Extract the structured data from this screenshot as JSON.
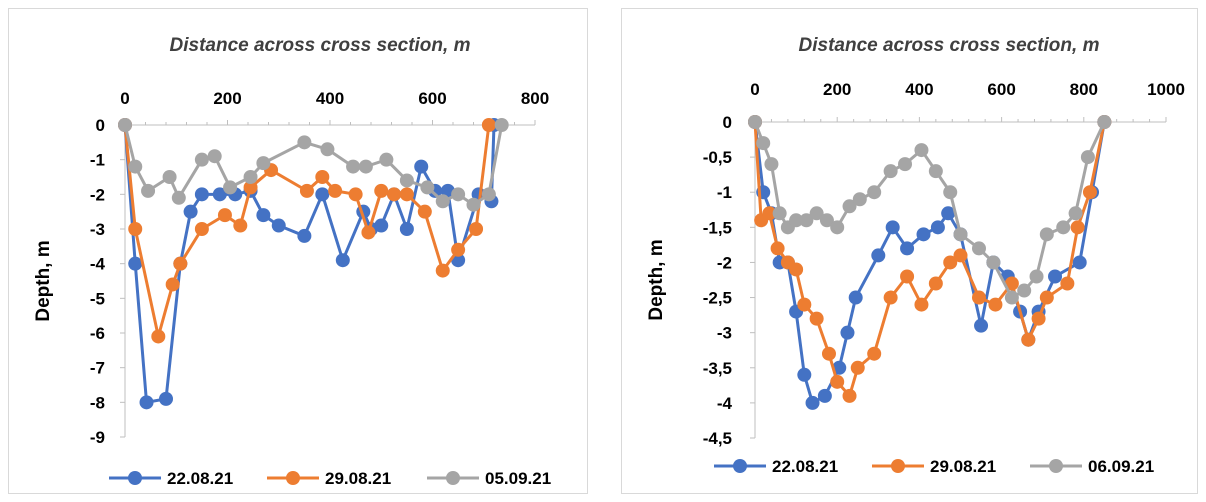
{
  "chart_data": [
    {
      "type": "line",
      "title": "Distance across cross section, m",
      "ylabel": "Depth, m",
      "xlabel": "",
      "xlim": [
        0,
        800
      ],
      "ylim": [
        -9,
        0
      ],
      "x_ticks": [
        "0",
        "200",
        "400",
        "600",
        "800"
      ],
      "y_ticks": [
        "0",
        "-1",
        "-2",
        "-3",
        "-4",
        "-5",
        "-6",
        "-7",
        "-8",
        "-9"
      ],
      "x_axis_position": "top",
      "legend_position": "bottom",
      "series": [
        {
          "name": "22.08.21",
          "color": "#4472c4",
          "points": [
            [
              0,
              0
            ],
            [
              20,
              -4
            ],
            [
              42,
              -8
            ],
            [
              80,
              -7.9
            ],
            [
              108,
              -4
            ],
            [
              128,
              -2.5
            ],
            [
              150,
              -2
            ],
            [
              185,
              -2
            ],
            [
              215,
              -2
            ],
            [
              245,
              -1.9
            ],
            [
              270,
              -2.6
            ],
            [
              300,
              -2.9
            ],
            [
              350,
              -3.2
            ],
            [
              385,
              -2
            ],
            [
              425,
              -3.9
            ],
            [
              465,
              -2.5
            ],
            [
              480,
              -3
            ],
            [
              500,
              -2.9
            ],
            [
              525,
              -2
            ],
            [
              550,
              -3
            ],
            [
              578,
              -1.2
            ],
            [
              605,
              -1.9
            ],
            [
              630,
              -1.9
            ],
            [
              650,
              -3.9
            ],
            [
              690,
              -2
            ],
            [
              715,
              -2.2
            ],
            [
              720,
              0
            ]
          ]
        },
        {
          "name": "29.08.21",
          "color": "#ed7d31",
          "points": [
            [
              0,
              0
            ],
            [
              20,
              -3
            ],
            [
              65,
              -6.1
            ],
            [
              93,
              -4.6
            ],
            [
              108,
              -4
            ],
            [
              150,
              -3
            ],
            [
              195,
              -2.6
            ],
            [
              225,
              -2.9
            ],
            [
              245,
              -1.8
            ],
            [
              285,
              -1.3
            ],
            [
              355,
              -1.9
            ],
            [
              385,
              -1.5
            ],
            [
              410,
              -1.9
            ],
            [
              450,
              -2
            ],
            [
              475,
              -3.1
            ],
            [
              500,
              -1.9
            ],
            [
              525,
              -2
            ],
            [
              550,
              -2
            ],
            [
              585,
              -2.5
            ],
            [
              620,
              -4.2
            ],
            [
              650,
              -3.6
            ],
            [
              685,
              -3
            ],
            [
              710,
              0
            ]
          ]
        },
        {
          "name": "05.09.21",
          "color": "#a5a5a5",
          "points": [
            [
              0,
              0
            ],
            [
              20,
              -1.2
            ],
            [
              45,
              -1.9
            ],
            [
              87,
              -1.5
            ],
            [
              105,
              -2.1
            ],
            [
              150,
              -1
            ],
            [
              175,
              -0.9
            ],
            [
              205,
              -1.8
            ],
            [
              245,
              -1.5
            ],
            [
              270,
              -1.1
            ],
            [
              350,
              -0.5
            ],
            [
              395,
              -0.7
            ],
            [
              445,
              -1.2
            ],
            [
              470,
              -1.2
            ],
            [
              510,
              -1
            ],
            [
              550,
              -1.6
            ],
            [
              590,
              -1.8
            ],
            [
              620,
              -2.2
            ],
            [
              650,
              -2
            ],
            [
              680,
              -2.3
            ],
            [
              710,
              -2
            ],
            [
              735,
              0
            ]
          ]
        }
      ]
    },
    {
      "type": "line",
      "title": "Distance across cross section, m",
      "ylabel": "Depth, m",
      "xlabel": "",
      "xlim": [
        0,
        1000
      ],
      "ylim": [
        -4.5,
        0
      ],
      "x_ticks": [
        "0",
        "200",
        "400",
        "600",
        "800",
        "1000"
      ],
      "y_ticks": [
        "0",
        "-0,5",
        "-1",
        "-1,5",
        "-2",
        "-2,5",
        "-3",
        "-3,5",
        "-4",
        "-4,5"
      ],
      "x_axis_position": "top",
      "legend_position": "bottom",
      "series": [
        {
          "name": "22.08.21",
          "color": "#4472c4",
          "points": [
            [
              0,
              0
            ],
            [
              20,
              -1
            ],
            [
              40,
              -1.3
            ],
            [
              60,
              -2
            ],
            [
              80,
              -2
            ],
            [
              100,
              -2.7
            ],
            [
              120,
              -3.6
            ],
            [
              140,
              -4
            ],
            [
              170,
              -3.9
            ],
            [
              205,
              -3.5
            ],
            [
              225,
              -3
            ],
            [
              245,
              -2.5
            ],
            [
              300,
              -1.9
            ],
            [
              335,
              -1.5
            ],
            [
              370,
              -1.8
            ],
            [
              410,
              -1.6
            ],
            [
              445,
              -1.5
            ],
            [
              470,
              -1.3
            ],
            [
              500,
              -1.6
            ],
            [
              550,
              -2.9
            ],
            [
              580,
              -2
            ],
            [
              615,
              -2.2
            ],
            [
              645,
              -2.7
            ],
            [
              665,
              -3.1
            ],
            [
              690,
              -2.7
            ],
            [
              730,
              -2.2
            ],
            [
              790,
              -2
            ],
            [
              820,
              -1
            ],
            [
              850,
              0
            ]
          ]
        },
        {
          "name": "29.08.21",
          "color": "#ed7d31",
          "points": [
            [
              0,
              0
            ],
            [
              15,
              -1.4
            ],
            [
              35,
              -1.3
            ],
            [
              55,
              -1.8
            ],
            [
              80,
              -2
            ],
            [
              100,
              -2.1
            ],
            [
              120,
              -2.6
            ],
            [
              150,
              -2.8
            ],
            [
              180,
              -3.3
            ],
            [
              200,
              -3.7
            ],
            [
              230,
              -3.9
            ],
            [
              250,
              -3.5
            ],
            [
              290,
              -3.3
            ],
            [
              330,
              -2.5
            ],
            [
              370,
              -2.2
            ],
            [
              405,
              -2.6
            ],
            [
              440,
              -2.3
            ],
            [
              475,
              -2
            ],
            [
              500,
              -1.9
            ],
            [
              545,
              -2.5
            ],
            [
              585,
              -2.6
            ],
            [
              625,
              -2.3
            ],
            [
              665,
              -3.1
            ],
            [
              690,
              -2.8
            ],
            [
              710,
              -2.5
            ],
            [
              760,
              -2.3
            ],
            [
              785,
              -1.5
            ],
            [
              815,
              -1
            ],
            [
              850,
              0
            ]
          ]
        },
        {
          "name": "06.09.21",
          "color": "#a5a5a5",
          "points": [
            [
              0,
              0
            ],
            [
              20,
              -0.3
            ],
            [
              40,
              -0.6
            ],
            [
              60,
              -1.3
            ],
            [
              80,
              -1.5
            ],
            [
              100,
              -1.4
            ],
            [
              125,
              -1.4
            ],
            [
              150,
              -1.3
            ],
            [
              175,
              -1.4
            ],
            [
              200,
              -1.5
            ],
            [
              230,
              -1.2
            ],
            [
              255,
              -1.1
            ],
            [
              290,
              -1
            ],
            [
              330,
              -0.7
            ],
            [
              365,
              -0.6
            ],
            [
              405,
              -0.4
            ],
            [
              440,
              -0.7
            ],
            [
              475,
              -1
            ],
            [
              500,
              -1.6
            ],
            [
              545,
              -1.8
            ],
            [
              580,
              -2
            ],
            [
              625,
              -2.5
            ],
            [
              655,
              -2.4
            ],
            [
              685,
              -2.2
            ],
            [
              710,
              -1.6
            ],
            [
              750,
              -1.5
            ],
            [
              780,
              -1.3
            ],
            [
              810,
              -0.5
            ],
            [
              850,
              0
            ]
          ]
        }
      ]
    }
  ]
}
